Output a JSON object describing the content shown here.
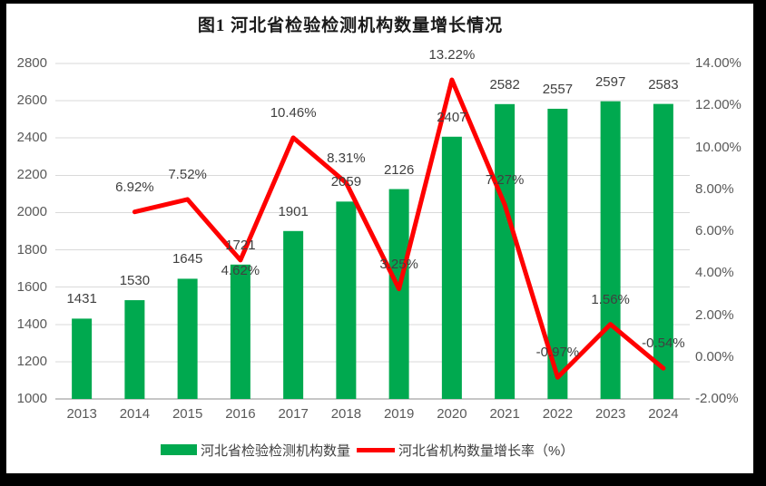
{
  "title": "图1 河北省检验检测机构数量增长情况",
  "colors": {
    "bar": "#00A94F",
    "line": "#FF0000",
    "grid": "#D9D9D9",
    "axis_line": "#C6C6C6",
    "axis_text": "#595959",
    "data_label": "#404040",
    "background": "#FFFFFF",
    "frame": "#000000"
  },
  "legend": [
    {
      "label": "河北省检验检测机构数量",
      "swatch": "bar"
    },
    {
      "label": "河北省机构数量增长率（%）",
      "swatch": "line"
    }
  ],
  "chart_data": {
    "type": "bar+line combo",
    "title": "图1 河北省检验检测机构数量增长情况",
    "categories": [
      "2013",
      "2014",
      "2015",
      "2016",
      "2017",
      "2018",
      "2019",
      "2020",
      "2021",
      "2022",
      "2023",
      "2024"
    ],
    "series": [
      {
        "name": "河北省检验检测机构数量",
        "type": "bar",
        "axis": "left",
        "values": [
          1431,
          1530,
          1645,
          1721,
          1901,
          2059,
          2126,
          2407,
          2582,
          2557,
          2597,
          2583
        ]
      },
      {
        "name": "河北省机构数量增长率（%）",
        "type": "line",
        "axis": "right",
        "values": [
          null,
          6.92,
          7.52,
          4.62,
          10.46,
          8.31,
          3.25,
          13.22,
          7.27,
          -0.97,
          1.56,
          -0.54
        ],
        "labels": [
          null,
          "6.92%",
          "7.52%",
          "4.62%",
          "10.46%",
          "8.31%",
          "3.25%",
          "13.22%",
          "7.27%",
          "-0.97%",
          "1.56%",
          "-0.54%"
        ],
        "label_side": [
          null,
          "above",
          "above",
          "below",
          "above",
          "above",
          "above",
          "above",
          "above",
          "above",
          "above",
          "above"
        ]
      }
    ],
    "left_axis": {
      "min": 1000,
      "max": 2800,
      "step": 200,
      "tick_labels": [
        "1000",
        "1200",
        "1400",
        "1600",
        "1800",
        "2000",
        "2200",
        "2400",
        "2600",
        "2800"
      ]
    },
    "right_axis": {
      "min": -2,
      "max": 14,
      "step": 2,
      "tick_labels": [
        "-2.00%",
        "0.00%",
        "2.00%",
        "4.00%",
        "6.00%",
        "8.00%",
        "10.00%",
        "12.00%",
        "14.00%"
      ]
    },
    "grid": true,
    "legend_position": "bottom"
  }
}
